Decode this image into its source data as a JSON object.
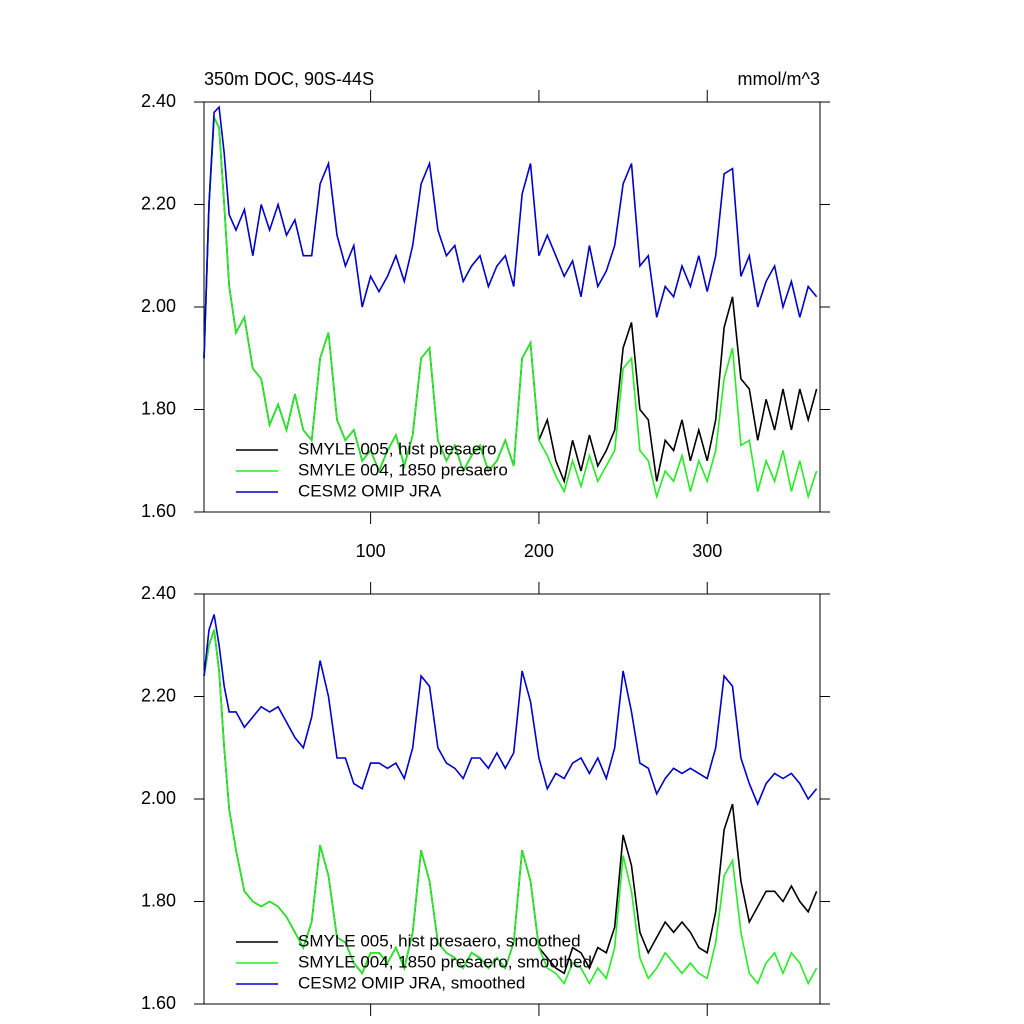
{
  "chart_data": [
    {
      "type": "line",
      "title": "350m DOC, 90S-44S",
      "units": "mmol/m^3",
      "x": [
        1,
        4,
        7,
        10,
        13,
        16,
        20,
        25,
        30,
        35,
        40,
        45,
        50,
        55,
        60,
        65,
        70,
        75,
        80,
        85,
        90,
        95,
        100,
        105,
        110,
        115,
        120,
        125,
        130,
        135,
        140,
        145,
        150,
        155,
        160,
        165,
        170,
        175,
        180,
        185,
        190,
        195,
        200,
        205,
        210,
        215,
        220,
        225,
        230,
        235,
        240,
        245,
        250,
        255,
        260,
        265,
        270,
        275,
        280,
        285,
        290,
        295,
        300,
        305,
        310,
        315,
        320,
        325,
        330,
        335,
        340,
        345,
        350,
        355,
        360,
        365
      ],
      "xlim": [
        1,
        367
      ],
      "xticks": [
        100,
        200,
        300
      ],
      "xtick_labels": true,
      "ylim": [
        1.6,
        2.4
      ],
      "yticks": [
        {
          "value": 1.6,
          "label": "1.60"
        },
        {
          "value": 1.8,
          "label": "1.80"
        },
        {
          "value": 2.0,
          "label": "2.00"
        },
        {
          "value": 2.2,
          "label": "2.20"
        },
        {
          "value": 2.4,
          "label": "2.40"
        }
      ],
      "legend": "lower left",
      "series": [
        {
          "name": "SMYLE 005, hist presaero",
          "color": "#000000",
          "values": [
            1.9,
            2.2,
            2.37,
            2.35,
            2.2,
            2.04,
            1.95,
            1.98,
            1.88,
            1.86,
            1.77,
            1.81,
            1.76,
            1.83,
            1.76,
            1.74,
            1.9,
            1.95,
            1.78,
            1.74,
            1.76,
            1.7,
            1.72,
            1.68,
            1.72,
            1.75,
            1.69,
            1.75,
            1.9,
            1.92,
            1.74,
            1.7,
            1.73,
            1.68,
            1.71,
            1.73,
            1.68,
            1.7,
            1.74,
            1.69,
            1.9,
            1.93,
            1.74,
            1.78,
            1.7,
            1.66,
            1.74,
            1.68,
            1.75,
            1.69,
            1.72,
            1.76,
            1.92,
            1.97,
            1.8,
            1.78,
            1.66,
            1.74,
            1.72,
            1.78,
            1.7,
            1.76,
            1.7,
            1.78,
            1.96,
            2.02,
            1.86,
            1.84,
            1.74,
            1.82,
            1.76,
            1.84,
            1.76,
            1.84,
            1.78,
            1.84
          ]
        },
        {
          "name": "SMYLE 004, 1850 presaero",
          "color": "#22ee22",
          "values": [
            1.9,
            2.2,
            2.37,
            2.35,
            2.2,
            2.04,
            1.95,
            1.98,
            1.88,
            1.86,
            1.77,
            1.81,
            1.76,
            1.83,
            1.76,
            1.74,
            1.9,
            1.95,
            1.78,
            1.74,
            1.76,
            1.7,
            1.72,
            1.68,
            1.72,
            1.75,
            1.69,
            1.75,
            1.9,
            1.92,
            1.74,
            1.7,
            1.73,
            1.68,
            1.71,
            1.73,
            1.68,
            1.7,
            1.74,
            1.69,
            1.9,
            1.93,
            1.74,
            1.71,
            1.67,
            1.64,
            1.7,
            1.65,
            1.71,
            1.66,
            1.69,
            1.72,
            1.88,
            1.9,
            1.72,
            1.7,
            1.63,
            1.68,
            1.66,
            1.71,
            1.64,
            1.7,
            1.66,
            1.72,
            1.86,
            1.92,
            1.73,
            1.74,
            1.64,
            1.7,
            1.66,
            1.72,
            1.64,
            1.7,
            1.63,
            1.68
          ]
        },
        {
          "name": "CESM2 OMIP JRA",
          "color": "#0000cc",
          "values": [
            1.9,
            2.2,
            2.38,
            2.39,
            2.3,
            2.18,
            2.15,
            2.19,
            2.1,
            2.2,
            2.15,
            2.2,
            2.14,
            2.17,
            2.1,
            2.1,
            2.24,
            2.28,
            2.14,
            2.08,
            2.12,
            2.0,
            2.06,
            2.03,
            2.06,
            2.1,
            2.05,
            2.12,
            2.24,
            2.28,
            2.15,
            2.1,
            2.12,
            2.05,
            2.08,
            2.1,
            2.04,
            2.08,
            2.1,
            2.04,
            2.22,
            2.28,
            2.1,
            2.14,
            2.1,
            2.06,
            2.09,
            2.02,
            2.12,
            2.04,
            2.07,
            2.12,
            2.24,
            2.28,
            2.08,
            2.1,
            1.98,
            2.04,
            2.02,
            2.08,
            2.04,
            2.1,
            2.03,
            2.1,
            2.26,
            2.27,
            2.06,
            2.1,
            2.0,
            2.05,
            2.08,
            2.0,
            2.05,
            1.98,
            2.04,
            2.02
          ]
        }
      ]
    },
    {
      "type": "line",
      "x": [
        1,
        4,
        7,
        10,
        13,
        16,
        20,
        25,
        30,
        35,
        40,
        45,
        50,
        55,
        60,
        65,
        70,
        75,
        80,
        85,
        90,
        95,
        100,
        105,
        110,
        115,
        120,
        125,
        130,
        135,
        140,
        145,
        150,
        155,
        160,
        165,
        170,
        175,
        180,
        185,
        190,
        195,
        200,
        205,
        210,
        215,
        220,
        225,
        230,
        235,
        240,
        245,
        250,
        255,
        260,
        265,
        270,
        275,
        280,
        285,
        290,
        295,
        300,
        305,
        310,
        315,
        320,
        325,
        330,
        335,
        340,
        345,
        350,
        355,
        360,
        365
      ],
      "xlim": [
        1,
        367
      ],
      "xticks": [
        100,
        200,
        300
      ],
      "xtick_labels": false,
      "ylim": [
        1.6,
        2.4
      ],
      "yticks": [
        {
          "value": 1.6,
          "label": "1.60"
        },
        {
          "value": 1.8,
          "label": "1.80"
        },
        {
          "value": 2.0,
          "label": "2.00"
        },
        {
          "value": 2.2,
          "label": "2.20"
        },
        {
          "value": 2.4,
          "label": "2.40"
        }
      ],
      "legend": "lower left",
      "series": [
        {
          "name": "SMYLE 005, hist presaero, smoothed",
          "color": "#000000",
          "values": [
            2.24,
            2.3,
            2.33,
            2.25,
            2.1,
            1.98,
            1.9,
            1.82,
            1.8,
            1.79,
            1.8,
            1.79,
            1.77,
            1.74,
            1.71,
            1.76,
            1.91,
            1.85,
            1.73,
            1.72,
            1.68,
            1.66,
            1.7,
            1.7,
            1.68,
            1.71,
            1.67,
            1.74,
            1.9,
            1.84,
            1.72,
            1.7,
            1.69,
            1.67,
            1.7,
            1.69,
            1.67,
            1.69,
            1.67,
            1.72,
            1.9,
            1.84,
            1.71,
            1.69,
            1.67,
            1.66,
            1.71,
            1.7,
            1.67,
            1.71,
            1.7,
            1.75,
            1.93,
            1.87,
            1.74,
            1.7,
            1.73,
            1.76,
            1.74,
            1.76,
            1.74,
            1.71,
            1.7,
            1.78,
            1.94,
            1.99,
            1.84,
            1.76,
            1.79,
            1.82,
            1.82,
            1.8,
            1.83,
            1.8,
            1.78,
            1.82
          ]
        },
        {
          "name": "SMYLE 004, 1850 presaero, smoothed",
          "color": "#22ee22",
          "values": [
            2.24,
            2.3,
            2.33,
            2.25,
            2.1,
            1.98,
            1.9,
            1.82,
            1.8,
            1.79,
            1.8,
            1.79,
            1.77,
            1.74,
            1.71,
            1.76,
            1.91,
            1.85,
            1.73,
            1.72,
            1.68,
            1.66,
            1.7,
            1.7,
            1.68,
            1.71,
            1.67,
            1.74,
            1.9,
            1.84,
            1.72,
            1.7,
            1.69,
            1.67,
            1.7,
            1.69,
            1.67,
            1.69,
            1.67,
            1.72,
            1.9,
            1.84,
            1.71,
            1.67,
            1.66,
            1.64,
            1.68,
            1.67,
            1.64,
            1.67,
            1.65,
            1.71,
            1.89,
            1.82,
            1.69,
            1.65,
            1.67,
            1.7,
            1.68,
            1.66,
            1.68,
            1.66,
            1.65,
            1.72,
            1.85,
            1.88,
            1.74,
            1.66,
            1.64,
            1.68,
            1.7,
            1.66,
            1.7,
            1.68,
            1.64,
            1.67
          ]
        },
        {
          "name": "CESM2 OMIP JRA, smoothed",
          "color": "#0000cc",
          "values": [
            2.24,
            2.33,
            2.36,
            2.3,
            2.22,
            2.17,
            2.17,
            2.14,
            2.16,
            2.18,
            2.17,
            2.18,
            2.15,
            2.12,
            2.1,
            2.16,
            2.27,
            2.2,
            2.08,
            2.08,
            2.03,
            2.02,
            2.07,
            2.07,
            2.06,
            2.07,
            2.04,
            2.1,
            2.24,
            2.22,
            2.1,
            2.07,
            2.06,
            2.04,
            2.08,
            2.08,
            2.06,
            2.09,
            2.06,
            2.09,
            2.25,
            2.19,
            2.08,
            2.02,
            2.05,
            2.04,
            2.07,
            2.08,
            2.05,
            2.08,
            2.04,
            2.1,
            2.25,
            2.17,
            2.07,
            2.06,
            2.01,
            2.04,
            2.06,
            2.05,
            2.06,
            2.05,
            2.04,
            2.1,
            2.24,
            2.22,
            2.08,
            2.03,
            1.99,
            2.03,
            2.05,
            2.04,
            2.05,
            2.03,
            2.0,
            2.02
          ]
        }
      ]
    }
  ]
}
